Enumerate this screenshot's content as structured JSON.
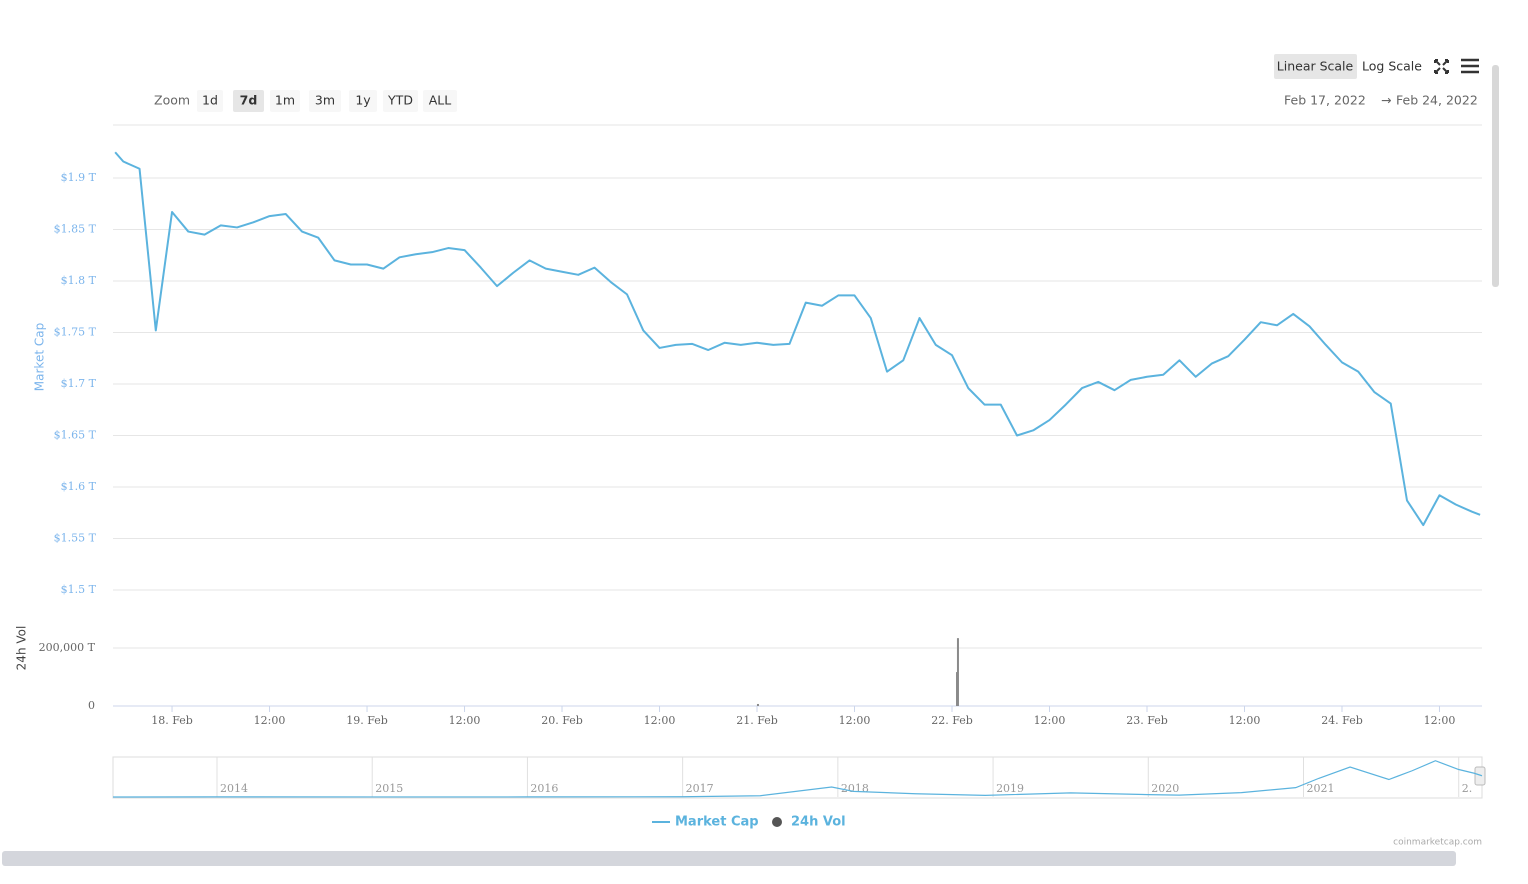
{
  "toolbar": {
    "zoom_label": "Zoom",
    "zoom_options": [
      "1d",
      "7d",
      "1m",
      "3m",
      "1y",
      "YTD",
      "ALL"
    ],
    "scale_options": [
      "Linear Scale",
      "Log Scale"
    ],
    "date_from": "Feb 17, 2022",
    "date_separator": "→",
    "date_to": "Feb 24, 2022"
  },
  "watermark": "coinmarketcap.com",
  "chart_data": [
    {
      "type": "line",
      "ylabel": "Market Cap",
      "y2label": "24h Vol",
      "xlim": [
        "2022-02-17 16:44",
        "2022-02-24 17:14"
      ],
      "xticks": [
        {
          "value": "2022-02-18 00:00",
          "label": "18. Feb"
        },
        {
          "value": "2022-02-18 12:00",
          "label": "12:00"
        },
        {
          "value": "2022-02-19 00:00",
          "label": "19. Feb"
        },
        {
          "value": "2022-02-19 12:00",
          "label": "12:00"
        },
        {
          "value": "2022-02-20 00:00",
          "label": "20. Feb"
        },
        {
          "value": "2022-02-20 12:00",
          "label": "12:00"
        },
        {
          "value": "2022-02-21 00:00",
          "label": "21. Feb"
        },
        {
          "value": "2022-02-21 12:00",
          "label": "12:00"
        },
        {
          "value": "2022-02-22 00:00",
          "label": "22. Feb"
        },
        {
          "value": "2022-02-22 12:00",
          "label": "12:00"
        },
        {
          "value": "2022-02-23 00:00",
          "label": "23. Feb"
        },
        {
          "value": "2022-02-23 12:00",
          "label": "12:00"
        },
        {
          "value": "2022-02-24 00:00",
          "label": "24. Feb"
        },
        {
          "value": "2022-02-24 12:00",
          "label": "12:00"
        }
      ],
      "ylim": [
        1.49,
        1.95
      ],
      "yticks": [
        {
          "value": 1.5,
          "label": "$1.5 T"
        },
        {
          "value": 1.55,
          "label": "$1.55 T"
        },
        {
          "value": 1.6,
          "label": "$1.6 T"
        },
        {
          "value": 1.65,
          "label": "$1.65 T"
        },
        {
          "value": 1.7,
          "label": "$1.7 T"
        },
        {
          "value": 1.75,
          "label": "$1.75 T"
        },
        {
          "value": 1.8,
          "label": "$1.8 T"
        },
        {
          "value": 1.85,
          "label": "$1.85 T"
        },
        {
          "value": 1.9,
          "label": "$1.9 T"
        }
      ],
      "y2lim": [
        0,
        300000
      ],
      "y2ticks": [
        0,
        {
          "value": 200000,
          "label": "200,000 T"
        }
      ],
      "grid": true,
      "series": [
        {
          "name": "Market Cap",
          "type": "line",
          "color": "#5bb3de",
          "x": [
            "2022-02-17 17:00",
            "2022-02-17 18:00",
            "2022-02-17 20:00",
            "2022-02-17 22:00",
            "2022-02-18 00:00",
            "2022-02-18 02:00",
            "2022-02-18 04:00",
            "2022-02-18 06:00",
            "2022-02-18 08:00",
            "2022-02-18 10:00",
            "2022-02-18 12:00",
            "2022-02-18 14:00",
            "2022-02-18 16:00",
            "2022-02-18 18:00",
            "2022-02-18 20:00",
            "2022-02-18 22:00",
            "2022-02-19 00:00",
            "2022-02-19 02:00",
            "2022-02-19 04:00",
            "2022-02-19 06:00",
            "2022-02-19 08:00",
            "2022-02-19 10:00",
            "2022-02-19 12:00",
            "2022-02-19 14:00",
            "2022-02-19 16:00",
            "2022-02-19 18:00",
            "2022-02-19 20:00",
            "2022-02-19 22:00",
            "2022-02-20 00:00",
            "2022-02-20 02:00",
            "2022-02-20 04:00",
            "2022-02-20 06:00",
            "2022-02-20 08:00",
            "2022-02-20 10:00",
            "2022-02-20 12:00",
            "2022-02-20 14:00",
            "2022-02-20 16:00",
            "2022-02-20 18:00",
            "2022-02-20 20:00",
            "2022-02-20 22:00",
            "2022-02-21 00:00",
            "2022-02-21 02:00",
            "2022-02-21 04:00",
            "2022-02-21 06:00",
            "2022-02-21 08:00",
            "2022-02-21 10:00",
            "2022-02-21 12:00",
            "2022-02-21 14:00",
            "2022-02-21 16:00",
            "2022-02-21 18:00",
            "2022-02-21 20:00",
            "2022-02-21 22:00",
            "2022-02-22 00:00",
            "2022-02-22 02:00",
            "2022-02-22 04:00",
            "2022-02-22 06:00",
            "2022-02-22 08:00",
            "2022-02-22 10:00",
            "2022-02-22 12:00",
            "2022-02-22 14:00",
            "2022-02-22 16:00",
            "2022-02-22 18:00",
            "2022-02-22 20:00",
            "2022-02-22 22:00",
            "2022-02-23 00:00",
            "2022-02-23 02:00",
            "2022-02-23 04:00",
            "2022-02-23 06:00",
            "2022-02-23 08:00",
            "2022-02-23 10:00",
            "2022-02-23 12:00",
            "2022-02-23 14:00",
            "2022-02-23 16:00",
            "2022-02-23 18:00",
            "2022-02-23 20:00",
            "2022-02-23 22:00",
            "2022-02-24 00:00",
            "2022-02-24 02:00",
            "2022-02-24 04:00",
            "2022-02-24 06:00",
            "2022-02-24 08:00",
            "2022-02-24 10:00",
            "2022-02-24 12:00",
            "2022-02-24 14:00",
            "2022-02-24 16:00",
            "2022-02-24 17:00"
          ],
          "values": [
            1.925,
            1.916,
            1.909,
            1.752,
            1.867,
            1.848,
            1.845,
            1.854,
            1.852,
            1.857,
            1.863,
            1.865,
            1.848,
            1.842,
            1.82,
            1.816,
            1.816,
            1.812,
            1.823,
            1.826,
            1.828,
            1.832,
            1.83,
            1.813,
            1.795,
            1.808,
            1.82,
            1.812,
            1.809,
            1.806,
            1.813,
            1.799,
            1.787,
            1.752,
            1.735,
            1.738,
            1.739,
            1.733,
            1.74,
            1.738,
            1.74,
            1.738,
            1.739,
            1.779,
            1.776,
            1.786,
            1.786,
            1.764,
            1.712,
            1.723,
            1.764,
            1.738,
            1.728,
            1.696,
            1.68,
            1.68,
            1.65,
            1.655,
            1.665,
            1.68,
            1.696,
            1.702,
            1.694,
            1.704,
            1.707,
            1.709,
            1.723,
            1.707,
            1.72,
            1.727,
            1.743,
            1.76,
            1.757,
            1.768,
            1.756,
            1.738,
            1.721,
            1.712,
            1.692,
            1.681,
            1.587,
            1.563,
            1.592,
            1.583,
            1.576,
            1.573
          ]
        },
        {
          "name": "24h Vol",
          "type": "bar",
          "axis": "y2",
          "color": "#8a8a8a",
          "x": [
            "2022-02-21 00:07",
            "2022-02-22 00:37",
            "2022-02-22 00:44"
          ],
          "values": [
            7000,
            117000,
            234000
          ]
        }
      ]
    },
    {
      "type": "line",
      "color": "#5bb3de",
      "xlim": [
        2013.33,
        2022.15
      ],
      "xticks": [
        2014,
        2015,
        2016,
        2017,
        2018,
        2019,
        2020,
        2021,
        {
          "value": 2022,
          "label": "2."
        }
      ],
      "ylim": [
        0,
        3.2
      ],
      "x": [
        2013.33,
        2014,
        2015,
        2016,
        2017,
        2017.5,
        2017.96,
        2018.1,
        2018.5,
        2018.95,
        2019.5,
        2020,
        2020.2,
        2020.6,
        2020.95,
        2021.1,
        2021.3,
        2021.55,
        2021.7,
        2021.85,
        2022.0,
        2022.1,
        2022.15
      ],
      "values": [
        0.002,
        0.01,
        0.005,
        0.007,
        0.018,
        0.1,
        0.8,
        0.45,
        0.26,
        0.13,
        0.33,
        0.19,
        0.15,
        0.35,
        0.75,
        1.5,
        2.4,
        1.4,
        2.1,
        2.9,
        2.2,
        1.9,
        1.7
      ]
    }
  ]
}
